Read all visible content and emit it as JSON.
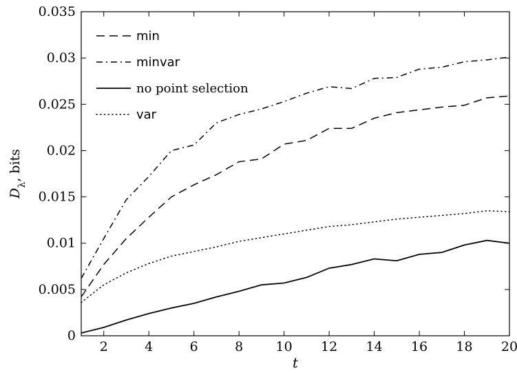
{
  "chart_data": {
    "type": "line",
    "xlabel": "t",
    "ylabel": "D_λ, bits",
    "ylabel_parts": {
      "main": "D",
      "sub": "λ",
      "rest": ", bits"
    },
    "xlim": [
      1,
      20
    ],
    "ylim": [
      0,
      0.035
    ],
    "xticks": [
      2,
      4,
      6,
      8,
      10,
      12,
      14,
      16,
      18,
      20
    ],
    "yticks": [
      0,
      0.005,
      0.01,
      0.015,
      0.02,
      0.025,
      0.03,
      0.035
    ],
    "ytick_labels": [
      "0",
      "0.005",
      "0.01",
      "0.015",
      "0.02",
      "0.025",
      "0.03",
      "0.035"
    ],
    "grid": false,
    "legend_position": "top-left",
    "x": [
      1,
      2,
      3,
      4,
      5,
      6,
      7,
      8,
      9,
      10,
      11,
      12,
      13,
      14,
      15,
      16,
      17,
      18,
      19,
      20
    ],
    "series": [
      {
        "name": "min",
        "style": "dashed",
        "values": [
          0.0042,
          0.0077,
          0.0105,
          0.0128,
          0.015,
          0.0163,
          0.0174,
          0.0188,
          0.0191,
          0.0207,
          0.0211,
          0.0224,
          0.0224,
          0.0235,
          0.0241,
          0.0244,
          0.0247,
          0.0249,
          0.0257,
          0.0259
        ]
      },
      {
        "name": "minvar",
        "style": "dashdot",
        "values": [
          0.0062,
          0.0105,
          0.0147,
          0.0172,
          0.02,
          0.0206,
          0.023,
          0.0239,
          0.0245,
          0.0253,
          0.0262,
          0.0269,
          0.0267,
          0.0278,
          0.0279,
          0.0288,
          0.029,
          0.0296,
          0.0298,
          0.0301
        ]
      },
      {
        "name": "no point selection",
        "style": "solid",
        "values": [
          0.0003,
          0.0009,
          0.0017,
          0.0024,
          0.003,
          0.0035,
          0.0042,
          0.0048,
          0.0055,
          0.0057,
          0.0063,
          0.0073,
          0.0077,
          0.0083,
          0.0081,
          0.0088,
          0.009,
          0.0098,
          0.0103,
          0.01
        ]
      },
      {
        "name": "var",
        "style": "dotted",
        "values": [
          0.0036,
          0.0055,
          0.0068,
          0.0078,
          0.0086,
          0.0091,
          0.0096,
          0.0102,
          0.0106,
          0.011,
          0.0114,
          0.0118,
          0.012,
          0.0123,
          0.0126,
          0.0128,
          0.013,
          0.0132,
          0.0135,
          0.0134
        ]
      }
    ]
  }
}
